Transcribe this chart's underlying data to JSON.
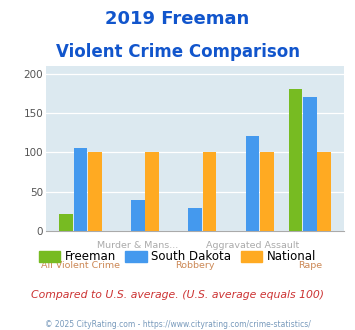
{
  "title_line1": "2019 Freeman",
  "title_line2": "Violent Crime Comparison",
  "categories": [
    "All Violent Crime",
    "Murder & Mans...",
    "Robbery",
    "Aggravated Assault",
    "Rape"
  ],
  "freeman": [
    22,
    0,
    0,
    0,
    181
  ],
  "south_dakota": [
    106,
    40,
    29,
    121,
    170
  ],
  "national": [
    100,
    100,
    100,
    100,
    100
  ],
  "freeman_color": "#77bb22",
  "sd_color": "#4499ee",
  "national_color": "#ffaa22",
  "ylim": [
    0,
    210
  ],
  "yticks": [
    0,
    50,
    100,
    150,
    200
  ],
  "bg_color": "#dce9f0",
  "title_color": "#1155cc",
  "xlabel_color": "#cc8855",
  "footer_text": "Compared to U.S. average. (U.S. average equals 100)",
  "footer_color": "#cc3333",
  "copyright_text": "© 2025 CityRating.com - https://www.cityrating.com/crime-statistics/",
  "copyright_color": "#7799bb",
  "legend_labels": [
    "Freeman",
    "South Dakota",
    "National"
  ]
}
